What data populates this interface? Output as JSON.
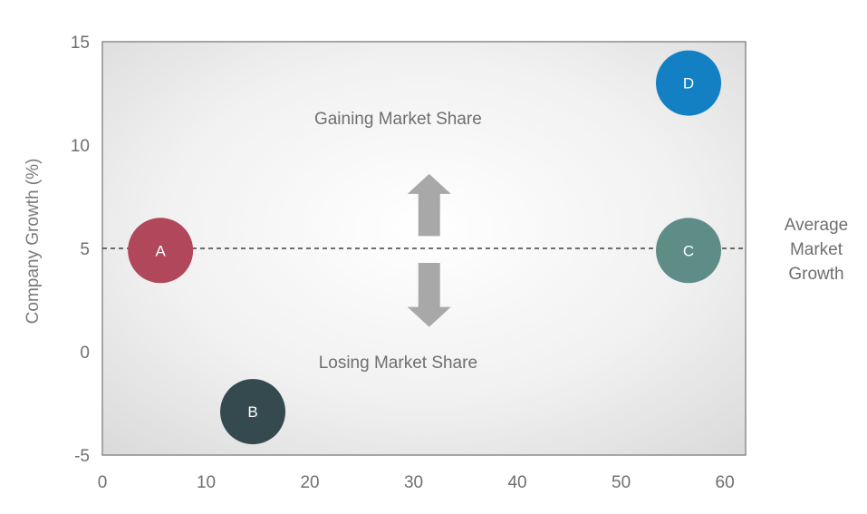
{
  "chart_data": {
    "type": "scatter",
    "xlabel": "",
    "ylabel": "Company Growth (%)",
    "xlim": [
      0,
      62
    ],
    "ylim": [
      -5,
      15
    ],
    "x_ticks": [
      0,
      10,
      20,
      30,
      40,
      50,
      60
    ],
    "y_ticks": [
      15,
      10,
      5,
      0,
      -5
    ],
    "grid": false,
    "points": [
      {
        "label": "A",
        "x": 5.6,
        "y": 4.9,
        "color": "#b0475a"
      },
      {
        "label": "B",
        "x": 14.5,
        "y": -2.9,
        "color": "#354a4e"
      },
      {
        "label": "C",
        "x": 56.5,
        "y": 4.9,
        "color": "#5e8d87"
      },
      {
        "label": "D",
        "x": 56.5,
        "y": 13.0,
        "color": "#1280c2"
      }
    ],
    "reference_line": {
      "y": 5,
      "label_lines": [
        "Average",
        "Market",
        "Growth"
      ]
    },
    "annotations": {
      "top": {
        "text": "Gaining Market Share",
        "x": 28.5,
        "y": 11.0
      },
      "bottom": {
        "text": "Losing Market Share",
        "x": 28.5,
        "y": -0.8
      }
    },
    "arrow": {
      "x": 31.5,
      "up_from": 5.6,
      "up_to": 8.6,
      "down_from": 4.3,
      "down_to": 1.2,
      "color": "#a8a8a8"
    }
  }
}
